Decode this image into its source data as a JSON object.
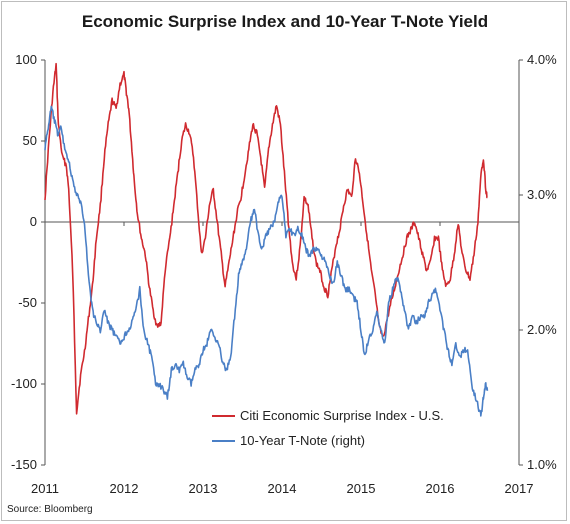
{
  "chart_data": {
    "type": "line",
    "title": "Economic Surprise Index and 10-Year T-Note Yield",
    "source": "Source: Bloomberg",
    "x_ticks": [
      "2011",
      "2012",
      "2013",
      "2014",
      "2015",
      "2016",
      "2017"
    ],
    "xlim": [
      2011,
      2017
    ],
    "y_left": {
      "lim": [
        -150,
        100
      ],
      "ticks": [
        "100",
        "50",
        "0",
        "-50",
        "-100",
        "-150"
      ]
    },
    "y_right": {
      "lim": [
        1.0,
        4.0
      ],
      "ticks": [
        "4.0%",
        "3.0%",
        "2.0%",
        "1.0%"
      ]
    },
    "zero_line": true,
    "grid": false,
    "legend_position": "bottom-center",
    "colors": {
      "series1": "#d02a2f",
      "series2": "#4a7fc6",
      "zero_line": "#555555"
    },
    "series": [
      {
        "name": "Citi Economic Surprise Index - U.S.",
        "axis": "left",
        "x": [
          2011.0,
          2011.05,
          2011.1,
          2011.14,
          2011.17,
          2011.22,
          2011.27,
          2011.3,
          2011.35,
          2011.4,
          2011.45,
          2011.5,
          2011.55,
          2011.6,
          2011.65,
          2011.7,
          2011.75,
          2011.8,
          2011.85,
          2011.9,
          2011.95,
          2012.0,
          2012.03,
          2012.06,
          2012.1,
          2012.13,
          2012.17,
          2012.22,
          2012.27,
          2012.32,
          2012.37,
          2012.42,
          2012.47,
          2012.52,
          2012.58,
          2012.63,
          2012.68,
          2012.73,
          2012.78,
          2012.83,
          2012.88,
          2012.93,
          2012.98,
          2013.03,
          2013.08,
          2013.13,
          2013.18,
          2013.23,
          2013.28,
          2013.33,
          2013.38,
          2013.43,
          2013.48,
          2013.53,
          2013.58,
          2013.63,
          2013.68,
          2013.73,
          2013.78,
          2013.83,
          2013.88,
          2013.93,
          2013.98,
          2014.03,
          2014.08,
          2014.13,
          2014.18,
          2014.23,
          2014.28,
          2014.33,
          2014.38,
          2014.43,
          2014.48,
          2014.53,
          2014.58,
          2014.63,
          2014.68,
          2014.73,
          2014.78,
          2014.83,
          2014.88,
          2014.93,
          2014.98,
          2015.03,
          2015.08,
          2015.13,
          2015.18,
          2015.23,
          2015.28,
          2015.33,
          2015.38,
          2015.43,
          2015.48,
          2015.53,
          2015.58,
          2015.63,
          2015.68,
          2015.73,
          2015.78,
          2015.83,
          2015.88,
          2015.93,
          2015.98,
          2016.03,
          2016.08,
          2016.13,
          2016.18,
          2016.23,
          2016.28,
          2016.33,
          2016.38,
          2016.43,
          2016.48,
          2016.52,
          2016.55,
          2016.58,
          2016.6
        ],
        "values": [
          15,
          50,
          80,
          97,
          60,
          40,
          35,
          20,
          -30,
          -117,
          -95,
          -80,
          -60,
          -40,
          -10,
          10,
          40,
          60,
          75,
          70,
          85,
          91,
          80,
          70,
          45,
          25,
          5,
          -10,
          -20,
          -40,
          -55,
          -65,
          -62,
          -30,
          -10,
          10,
          30,
          50,
          60,
          55,
          40,
          10,
          -20,
          -10,
          10,
          20,
          0,
          -20,
          -40,
          -25,
          -10,
          5,
          15,
          30,
          45,
          60,
          55,
          40,
          20,
          45,
          60,
          72,
          60,
          30,
          0,
          -25,
          -35,
          -15,
          15,
          10,
          -10,
          -25,
          -30,
          -40,
          -45,
          -30,
          -15,
          -5,
          10,
          20,
          15,
          40,
          30,
          10,
          -10,
          -30,
          -45,
          -65,
          -72,
          -60,
          -50,
          -40,
          -30,
          -20,
          -10,
          -5,
          0,
          -10,
          -20,
          -30,
          -25,
          -10,
          -10,
          -30,
          -40,
          -35,
          -20,
          0,
          -20,
          -30,
          -35,
          -20,
          0,
          30,
          40,
          20,
          15
        ]
      },
      {
        "name": "10-Year T-Note (right)",
        "axis": "right",
        "x": [
          2011.0,
          2011.04,
          2011.08,
          2011.12,
          2011.16,
          2011.2,
          2011.25,
          2011.3,
          2011.35,
          2011.4,
          2011.45,
          2011.5,
          2011.55,
          2011.6,
          2011.65,
          2011.7,
          2011.75,
          2011.8,
          2011.85,
          2011.9,
          2011.95,
          2012.0,
          2012.05,
          2012.1,
          2012.15,
          2012.2,
          2012.25,
          2012.3,
          2012.35,
          2012.4,
          2012.45,
          2012.5,
          2012.55,
          2012.6,
          2012.65,
          2012.7,
          2012.75,
          2012.8,
          2012.85,
          2012.9,
          2012.95,
          2013.0,
          2013.05,
          2013.1,
          2013.15,
          2013.2,
          2013.25,
          2013.3,
          2013.35,
          2013.4,
          2013.45,
          2013.5,
          2013.55,
          2013.6,
          2013.65,
          2013.7,
          2013.75,
          2013.8,
          2013.85,
          2013.9,
          2013.95,
          2014.0,
          2014.05,
          2014.1,
          2014.15,
          2014.2,
          2014.25,
          2014.3,
          2014.35,
          2014.4,
          2014.45,
          2014.5,
          2014.55,
          2014.6,
          2014.65,
          2014.7,
          2014.75,
          2014.8,
          2014.85,
          2014.9,
          2014.95,
          2015.0,
          2015.05,
          2015.1,
          2015.15,
          2015.2,
          2015.25,
          2015.3,
          2015.35,
          2015.4,
          2015.45,
          2015.5,
          2015.55,
          2015.6,
          2015.65,
          2015.7,
          2015.75,
          2015.8,
          2015.85,
          2015.9,
          2015.95,
          2016.0,
          2016.05,
          2016.1,
          2016.15,
          2016.2,
          2016.25,
          2016.3,
          2016.35,
          2016.4,
          2016.45,
          2016.5,
          2016.52,
          2016.55,
          2016.58,
          2016.6
        ],
        "values": [
          3.35,
          3.5,
          3.65,
          3.55,
          3.45,
          3.5,
          3.35,
          3.25,
          3.1,
          3.0,
          2.95,
          2.8,
          2.4,
          2.15,
          2.05,
          2.0,
          2.15,
          2.05,
          2.0,
          1.95,
          1.9,
          1.95,
          2.0,
          2.05,
          2.15,
          2.3,
          2.0,
          1.9,
          1.8,
          1.6,
          1.6,
          1.55,
          1.5,
          1.7,
          1.75,
          1.7,
          1.75,
          1.65,
          1.6,
          1.7,
          1.75,
          1.85,
          1.9,
          2.0,
          1.95,
          1.9,
          1.75,
          1.7,
          1.8,
          2.1,
          2.4,
          2.5,
          2.6,
          2.8,
          2.9,
          2.7,
          2.6,
          2.7,
          2.75,
          2.8,
          2.95,
          3.0,
          2.7,
          2.75,
          2.7,
          2.75,
          2.7,
          2.6,
          2.55,
          2.6,
          2.6,
          2.55,
          2.5,
          2.4,
          2.35,
          2.5,
          2.4,
          2.3,
          2.3,
          2.25,
          2.2,
          2.0,
          1.8,
          1.95,
          2.0,
          2.15,
          2.0,
          1.9,
          2.2,
          2.3,
          2.4,
          2.3,
          2.15,
          2.0,
          2.1,
          2.05,
          2.1,
          2.1,
          2.2,
          2.25,
          2.3,
          2.15,
          2.0,
          1.85,
          1.75,
          1.9,
          1.8,
          1.85,
          1.85,
          1.6,
          1.5,
          1.4,
          1.37,
          1.5,
          1.6,
          1.55
        ]
      }
    ]
  }
}
